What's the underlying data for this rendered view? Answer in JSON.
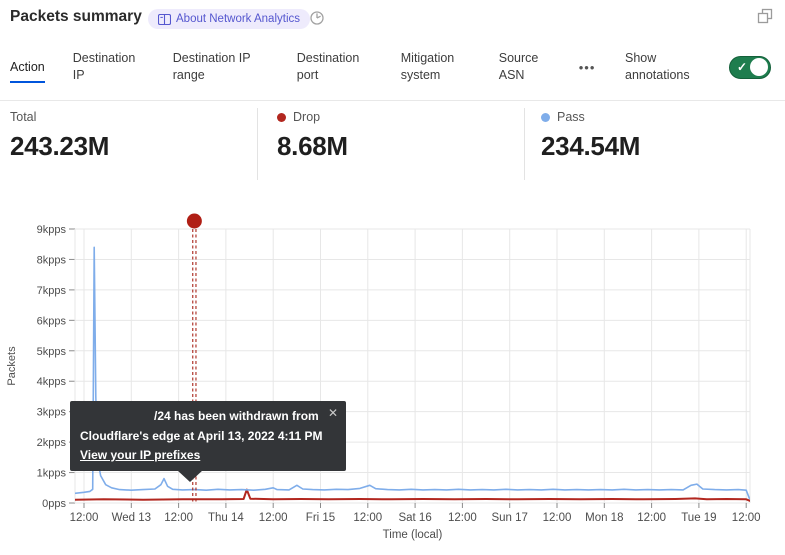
{
  "header": {
    "title": "Packets summary",
    "about_badge": "About Network Analytics"
  },
  "icons": {
    "more_glyph": "•••",
    "toggle_check_glyph": "✓",
    "close_glyph": "✕"
  },
  "tabs": {
    "items": [
      {
        "label": "Action",
        "selected": true
      },
      {
        "label": "Destination IP",
        "selected": false
      },
      {
        "label": "Destination IP range",
        "selected": false
      },
      {
        "label": "Destination port",
        "selected": false
      },
      {
        "label": "Mitigation system",
        "selected": false
      },
      {
        "label": "Source ASN",
        "selected": false
      }
    ],
    "annotations_label": "Show annotations",
    "annotations_on": true
  },
  "stats": {
    "items": [
      {
        "label": "Total",
        "value": "243.23M",
        "dot_color": null
      },
      {
        "label": "Drop",
        "value": "8.68M",
        "dot_color": "#b2271f"
      },
      {
        "label": "Pass",
        "value": "234.54M",
        "dot_color": "#7fadea"
      }
    ]
  },
  "tooltip": {
    "line1": "/24 has been withdrawn from",
    "line2": "Cloudflare's edge at April 13, 2022 4:11 PM",
    "link": "View your IP prefixes"
  },
  "colors": {
    "tab_underline": "#0055dc",
    "toggle_on": "#1e7d4e",
    "badge_bg": "#eeebfc",
    "badge_text": "#5557cf",
    "grid": "#e7e7e7",
    "annotation_red": "#a8241a"
  },
  "chart_data": {
    "type": "line",
    "title": "",
    "ylabel": "Packets",
    "xlabel": "Time (local)",
    "unit": "kpps",
    "ylim_kpps": [
      0,
      9
    ],
    "y_ticks": [
      "0pps",
      "1kpps",
      "2kpps",
      "3kpps",
      "4kpps",
      "5kpps",
      "6kpps",
      "7kpps",
      "8kpps",
      "9kpps"
    ],
    "x_ticks": [
      "12:00",
      "Wed 13",
      "12:00",
      "Thu 14",
      "12:00",
      "Fri 15",
      "12:00",
      "Sat 16",
      "12:00",
      "Sun 17",
      "12:00",
      "Mon 18",
      "12:00",
      "Tue 19",
      "12:00"
    ],
    "x_tick_interval_hours": 12,
    "xlim_hours": [
      -2.3,
      169.3
    ],
    "grid": true,
    "legend_position": "stats-row-above-chart",
    "series": [
      {
        "name": "Pass",
        "color": "#7fadea",
        "points_h_kpps": [
          [
            -2.3,
            0.32
          ],
          [
            0,
            0.35
          ],
          [
            1.5,
            0.38
          ],
          [
            2.2,
            0.45
          ],
          [
            2.6,
            8.4
          ],
          [
            3.0,
            3.5
          ],
          [
            3.4,
            1.5
          ],
          [
            4.2,
            0.9
          ],
          [
            5.5,
            0.6
          ],
          [
            7,
            0.5
          ],
          [
            9,
            0.44
          ],
          [
            12,
            0.42
          ],
          [
            15,
            0.44
          ],
          [
            18,
            0.46
          ],
          [
            19.5,
            0.6
          ],
          [
            20.3,
            0.8
          ],
          [
            21.2,
            0.55
          ],
          [
            22.5,
            0.45
          ],
          [
            25,
            0.43
          ],
          [
            28,
            0.44
          ],
          [
            31,
            0.42
          ],
          [
            34,
            0.45
          ],
          [
            37,
            0.43
          ],
          [
            40,
            0.44
          ],
          [
            43,
            0.42
          ],
          [
            46,
            0.45
          ],
          [
            48,
            0.5
          ],
          [
            49,
            0.44
          ],
          [
            52,
            0.43
          ],
          [
            54,
            0.58
          ],
          [
            55.5,
            0.46
          ],
          [
            58,
            0.44
          ],
          [
            61,
            0.43
          ],
          [
            64,
            0.45
          ],
          [
            67,
            0.44
          ],
          [
            70,
            0.48
          ],
          [
            72.5,
            0.58
          ],
          [
            74,
            0.47
          ],
          [
            77,
            0.44
          ],
          [
            80,
            0.43
          ],
          [
            83,
            0.45
          ],
          [
            86,
            0.43
          ],
          [
            89,
            0.44
          ],
          [
            92,
            0.43
          ],
          [
            95,
            0.45
          ],
          [
            98,
            0.43
          ],
          [
            101,
            0.44
          ],
          [
            104,
            0.43
          ],
          [
            107,
            0.45
          ],
          [
            110,
            0.43
          ],
          [
            113,
            0.44
          ],
          [
            116,
            0.43
          ],
          [
            119,
            0.45
          ],
          [
            122,
            0.43
          ],
          [
            125,
            0.44
          ],
          [
            128,
            0.43
          ],
          [
            131,
            0.44
          ],
          [
            134,
            0.43
          ],
          [
            137,
            0.45
          ],
          [
            140,
            0.43
          ],
          [
            143,
            0.44
          ],
          [
            146,
            0.43
          ],
          [
            149,
            0.44
          ],
          [
            152,
            0.43
          ],
          [
            154,
            0.58
          ],
          [
            155.5,
            0.62
          ],
          [
            157,
            0.46
          ],
          [
            160,
            0.44
          ],
          [
            163,
            0.43
          ],
          [
            166,
            0.44
          ],
          [
            168,
            0.42
          ],
          [
            168.8,
            0.15
          ],
          [
            169.3,
            0.13
          ]
        ]
      },
      {
        "name": "Drop",
        "color": "#b2271f",
        "points_h_kpps": [
          [
            -2.3,
            0.11
          ],
          [
            5,
            0.12
          ],
          [
            15,
            0.11
          ],
          [
            25,
            0.12
          ],
          [
            35,
            0.12
          ],
          [
            40.5,
            0.13
          ],
          [
            41.3,
            0.44
          ],
          [
            42.2,
            0.14
          ],
          [
            48,
            0.12
          ],
          [
            55,
            0.13
          ],
          [
            62,
            0.12
          ],
          [
            70,
            0.13
          ],
          [
            78,
            0.12
          ],
          [
            86,
            0.13
          ],
          [
            94,
            0.12
          ],
          [
            102,
            0.13
          ],
          [
            110,
            0.12
          ],
          [
            118,
            0.13
          ],
          [
            126,
            0.12
          ],
          [
            134,
            0.13
          ],
          [
            142,
            0.12
          ],
          [
            150,
            0.13
          ],
          [
            155,
            0.15
          ],
          [
            158,
            0.12
          ],
          [
            163,
            0.13
          ],
          [
            168,
            0.12
          ],
          [
            169,
            0.07
          ],
          [
            169.3,
            0.07
          ]
        ]
      }
    ],
    "annotation": {
      "x_hours": 28.0,
      "marker": "dot-with-dashed-vertical-line",
      "color": "#a8241a",
      "dot_color": "#b01f15",
      "time_label": "April 13, 2022 4:11 PM"
    }
  }
}
